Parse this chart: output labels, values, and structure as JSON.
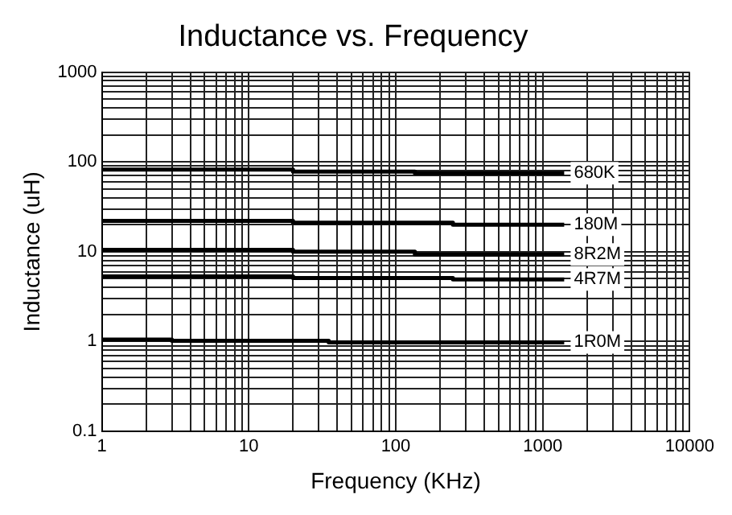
{
  "chart_data": {
    "type": "line",
    "title": "Inductance vs. Frequency",
    "xlabel": "Frequency (KHz)",
    "ylabel": "Inductance (uH)",
    "log": "xy",
    "grid": true,
    "legend": false,
    "marker": "none",
    "line_style": "solid",
    "xlim": [
      1,
      10000
    ],
    "ylim": [
      0.1,
      1000
    ],
    "xticks": [
      1,
      {
        "value": 2,
        "label": null
      },
      {
        "value": 3,
        "label": null
      },
      {
        "value": 4,
        "label": null
      },
      {
        "value": 5,
        "label": null
      },
      {
        "value": 6,
        "label": null
      },
      {
        "value": 7,
        "label": null
      },
      {
        "value": 8,
        "label": null
      },
      {
        "value": 9,
        "label": null
      },
      10,
      {
        "value": 20,
        "label": null
      },
      {
        "value": 30,
        "label": null
      },
      {
        "value": 40,
        "label": null
      },
      {
        "value": 50,
        "label": null
      },
      {
        "value": 60,
        "label": null
      },
      {
        "value": 70,
        "label": null
      },
      {
        "value": 80,
        "label": null
      },
      {
        "value": 90,
        "label": null
      },
      100,
      {
        "value": 200,
        "label": null
      },
      {
        "value": 300,
        "label": null
      },
      {
        "value": 400,
        "label": null
      },
      {
        "value": 500,
        "label": null
      },
      {
        "value": 600,
        "label": null
      },
      {
        "value": 700,
        "label": null
      },
      {
        "value": 800,
        "label": null
      },
      {
        "value": 900,
        "label": null
      },
      1000,
      {
        "value": 2000,
        "label": null
      },
      {
        "value": 3000,
        "label": null
      },
      {
        "value": 4000,
        "label": null
      },
      {
        "value": 5000,
        "label": null
      },
      {
        "value": 6000,
        "label": null
      },
      {
        "value": 7000,
        "label": null
      },
      {
        "value": 8000,
        "label": null
      },
      {
        "value": 9000,
        "label": null
      },
      10000
    ],
    "yticks": [
      0.1,
      {
        "value": 0.2,
        "label": null
      },
      {
        "value": 0.3,
        "label": null
      },
      {
        "value": 0.4,
        "label": null
      },
      {
        "value": 0.5,
        "label": null
      },
      {
        "value": 0.6,
        "label": null
      },
      {
        "value": 0.7,
        "label": null
      },
      {
        "value": 0.8,
        "label": null
      },
      {
        "value": 0.9,
        "label": null
      },
      1,
      {
        "value": 2,
        "label": null
      },
      {
        "value": 3,
        "label": null
      },
      {
        "value": 4,
        "label": null
      },
      {
        "value": 5,
        "label": null
      },
      {
        "value": 6,
        "label": null
      },
      {
        "value": 7,
        "label": null
      },
      {
        "value": 8,
        "label": null
      },
      {
        "value": 9,
        "label": null
      },
      10,
      {
        "value": 20,
        "label": null
      },
      {
        "value": 30,
        "label": null
      },
      {
        "value": 40,
        "label": null
      },
      {
        "value": 50,
        "label": null
      },
      {
        "value": 60,
        "label": null
      },
      {
        "value": 70,
        "label": null
      },
      {
        "value": 80,
        "label": null
      },
      {
        "value": 90,
        "label": null
      },
      100,
      {
        "value": 200,
        "label": null
      },
      {
        "value": 300,
        "label": null
      },
      {
        "value": 400,
        "label": null
      },
      {
        "value": 500,
        "label": null
      },
      {
        "value": 600,
        "label": null
      },
      {
        "value": 700,
        "label": null
      },
      {
        "value": 800,
        "label": null
      },
      {
        "value": 900,
        "label": null
      },
      1000
    ],
    "series": [
      {
        "name": "680K",
        "color": "#000000",
        "x": [
          1,
          20,
          20,
          135,
          135,
          1400
        ],
        "values": [
          82,
          82,
          78,
          78,
          75,
          75
        ]
      },
      {
        "name": "180M",
        "color": "#000000",
        "x": [
          1,
          20,
          20,
          245,
          245,
          1400
        ],
        "values": [
          22,
          22,
          21,
          21,
          20,
          20
        ]
      },
      {
        "name": "8R2M",
        "color": "#000000",
        "x": [
          1,
          20,
          20,
          135,
          135,
          1400
        ],
        "values": [
          10.5,
          10.5,
          10,
          10,
          9.3,
          9.3
        ]
      },
      {
        "name": "4R7M",
        "color": "#000000",
        "x": [
          1,
          20,
          20,
          245,
          245,
          1400
        ],
        "values": [
          5.3,
          5.3,
          5.1,
          5.1,
          4.9,
          4.9
        ]
      },
      {
        "name": "1R0M",
        "color": "#000000",
        "x": [
          1,
          3,
          3,
          35,
          35,
          1400
        ],
        "values": [
          1.05,
          1.05,
          1.02,
          1.02,
          0.98,
          0.98
        ]
      }
    ]
  }
}
